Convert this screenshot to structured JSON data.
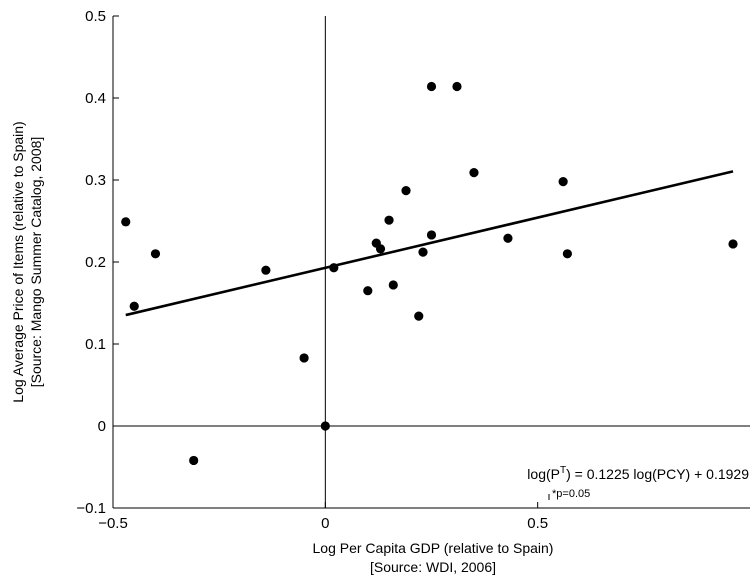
{
  "chart_data": {
    "type": "scatter",
    "xlabel": "Log Per Capita GDP (relative to Spain)",
    "xlabel_source": "[Source: WDI, 2006]",
    "ylabel": "Log Average Price of Items (relative to Spain)",
    "ylabel_source": "[Source: Mango Summer Catalog, 2008]",
    "xlim": [
      -0.5,
      1.0
    ],
    "ylim": [
      -0.1,
      0.5
    ],
    "xticks": [
      -0.5,
      0,
      0.5
    ],
    "xtick_labels": [
      "−0.5",
      "0",
      "0.5"
    ],
    "yticks": [
      -0.1,
      0,
      0.1,
      0.2,
      0.3,
      0.4,
      0.5
    ],
    "ytick_labels": [
      "−0.1",
      "0",
      "0.1",
      "0.2",
      "0.3",
      "0.4",
      "0.5"
    ],
    "grid": false,
    "reference_lines": {
      "x": 0,
      "y": 0
    },
    "points": [
      {
        "x": -0.47,
        "y": 0.249
      },
      {
        "x": -0.45,
        "y": 0.146
      },
      {
        "x": -0.4,
        "y": 0.21
      },
      {
        "x": -0.31,
        "y": -0.042
      },
      {
        "x": -0.14,
        "y": 0.19
      },
      {
        "x": -0.05,
        "y": 0.083
      },
      {
        "x": 0.0,
        "y": 0.0
      },
      {
        "x": 0.02,
        "y": 0.193
      },
      {
        "x": 0.1,
        "y": 0.165
      },
      {
        "x": 0.12,
        "y": 0.223
      },
      {
        "x": 0.13,
        "y": 0.216
      },
      {
        "x": 0.15,
        "y": 0.251
      },
      {
        "x": 0.16,
        "y": 0.172
      },
      {
        "x": 0.19,
        "y": 0.287
      },
      {
        "x": 0.22,
        "y": 0.134
      },
      {
        "x": 0.23,
        "y": 0.212
      },
      {
        "x": 0.25,
        "y": 0.233
      },
      {
        "x": 0.25,
        "y": 0.414
      },
      {
        "x": 0.31,
        "y": 0.414
      },
      {
        "x": 0.35,
        "y": 0.309
      },
      {
        "x": 0.43,
        "y": 0.229
      },
      {
        "x": 0.56,
        "y": 0.298
      },
      {
        "x": 0.57,
        "y": 0.21
      },
      {
        "x": 0.96,
        "y": 0.222
      }
    ],
    "fit_line": {
      "slope": 0.1225,
      "intercept": 0.1929,
      "x_range": [
        -0.47,
        0.96
      ]
    },
    "equation_pre": "log(P",
    "equation_sup": "T",
    "equation_post": ") = 0.1225 log(PCY) + 0.1929",
    "significance_label": "*p=0.05"
  }
}
